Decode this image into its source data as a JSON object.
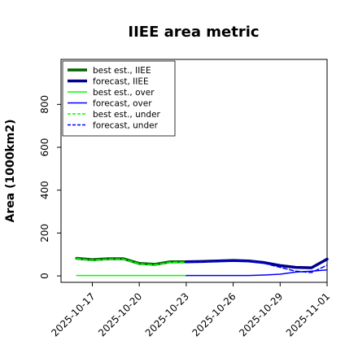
{
  "chart_data": {
    "type": "line",
    "title": "IIEE area metric",
    "xlabel": "",
    "ylabel": "Area (1000km2)",
    "ylim": [
      -30,
      1010
    ],
    "xlim": [
      "2025-10-15",
      "2025-11-01"
    ],
    "x_ticks": [
      "2025-10-17",
      "2025-10-20",
      "2025-10-23",
      "2025-10-26",
      "2025-10-29",
      "2025-11-01"
    ],
    "x_tick_colors": [
      "#000000",
      "#000000",
      "#228B22",
      "#000000",
      "#000000",
      "#000000"
    ],
    "y_ticks": [
      0,
      200,
      400,
      600,
      800
    ],
    "grid": false,
    "legend_position": "top-left",
    "series": [
      {
        "name": "best est., IIEE",
        "color": "#006400",
        "style": "solid",
        "weight": "thick",
        "x": [
          "2025-10-16",
          "2025-10-17",
          "2025-10-18",
          "2025-10-19",
          "2025-10-20",
          "2025-10-21",
          "2025-10-22",
          "2025-10-23"
        ],
        "values": [
          82,
          76,
          80,
          80,
          58,
          54,
          66,
          66
        ]
      },
      {
        "name": "forecast, IIEE",
        "color": "#00008B",
        "style": "solid",
        "weight": "thick",
        "x": [
          "2025-10-23",
          "2025-10-24",
          "2025-10-25",
          "2025-10-26",
          "2025-10-27",
          "2025-10-28",
          "2025-10-29",
          "2025-10-30",
          "2025-10-31",
          "2025-11-01"
        ],
        "values": [
          66,
          67,
          70,
          72,
          70,
          62,
          48,
          40,
          38,
          78
        ]
      },
      {
        "name": "best est., over",
        "color": "#00FF00",
        "style": "solid",
        "weight": "thin",
        "x": [
          "2025-10-16",
          "2025-10-17",
          "2025-10-18",
          "2025-10-19",
          "2025-10-20",
          "2025-10-21",
          "2025-10-22",
          "2025-10-23"
        ],
        "values": [
          2,
          2,
          2,
          2,
          2,
          2,
          2,
          2
        ]
      },
      {
        "name": "forecast, over",
        "color": "#0000FF",
        "style": "solid",
        "weight": "thin",
        "x": [
          "2025-10-23",
          "2025-10-24",
          "2025-10-25",
          "2025-10-26",
          "2025-10-27",
          "2025-10-28",
          "2025-10-29",
          "2025-10-30",
          "2025-10-31",
          "2025-11-01"
        ],
        "values": [
          2,
          2,
          2,
          2,
          2,
          4,
          8,
          18,
          22,
          28
        ]
      },
      {
        "name": "best est., under",
        "color": "#00FF00",
        "style": "dashed",
        "weight": "thin",
        "x": [
          "2025-10-16",
          "2025-10-17",
          "2025-10-18",
          "2025-10-19",
          "2025-10-20",
          "2025-10-21",
          "2025-10-22",
          "2025-10-23"
        ],
        "values": [
          80,
          74,
          78,
          78,
          56,
          52,
          64,
          64
        ]
      },
      {
        "name": "forecast, under",
        "color": "#0000FF",
        "style": "dashed",
        "weight": "thin",
        "x": [
          "2025-10-23",
          "2025-10-24",
          "2025-10-25",
          "2025-10-26",
          "2025-10-27",
          "2025-10-28",
          "2025-10-29",
          "2025-10-30",
          "2025-10-31",
          "2025-11-01"
        ],
        "values": [
          64,
          65,
          68,
          70,
          68,
          58,
          40,
          22,
          16,
          50
        ]
      }
    ]
  }
}
